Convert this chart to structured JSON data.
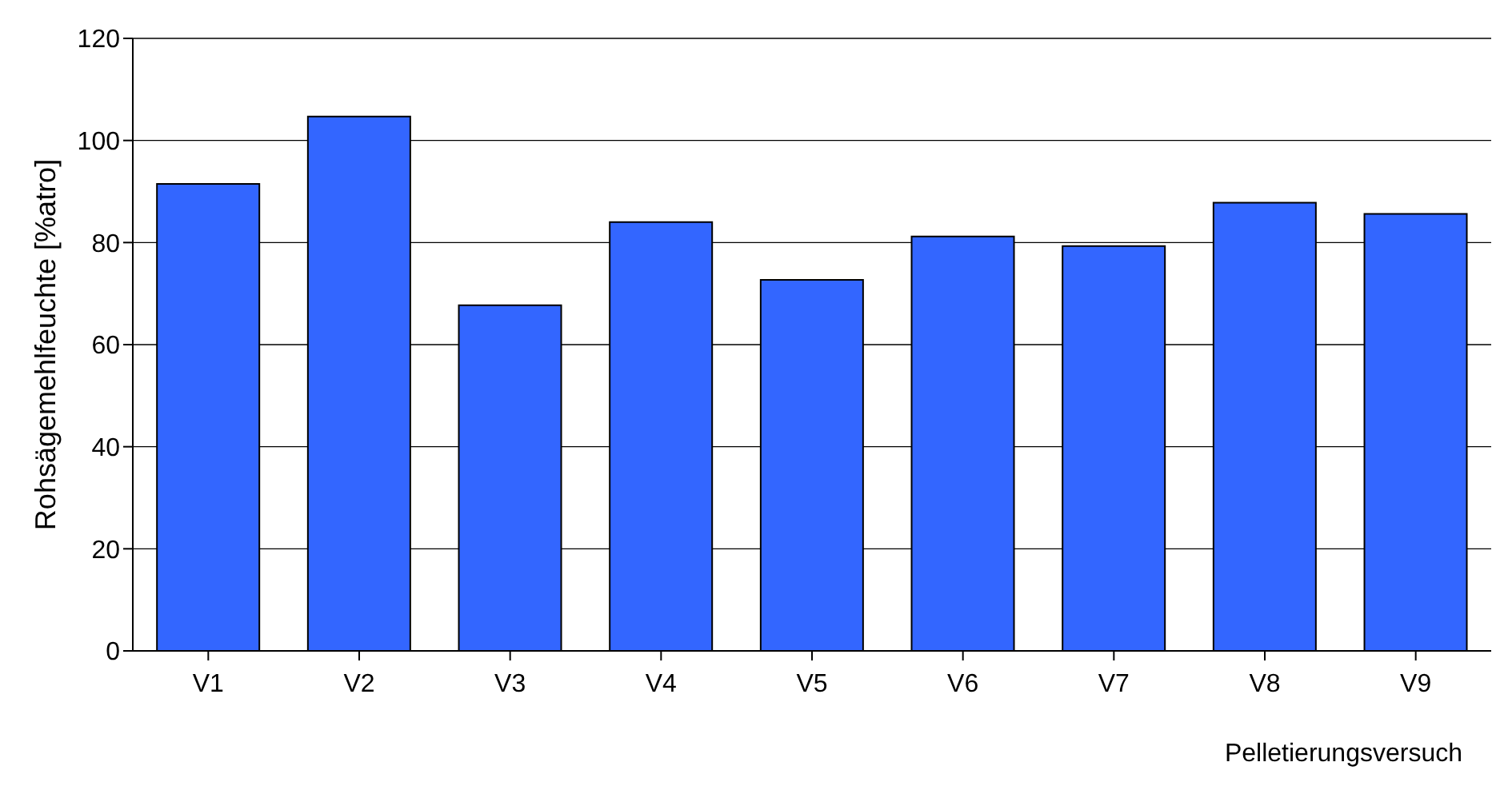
{
  "chart_data": {
    "type": "bar",
    "xlabel": "Pelletierungsversuch",
    "ylabel": "Rohsägemehlfeuchte [%atro]",
    "categories": [
      "V1",
      "V2",
      "V3",
      "V4",
      "V5",
      "V6",
      "V7",
      "V8",
      "V9"
    ],
    "values": [
      91.5,
      104.7,
      67.7,
      84,
      72.7,
      81.2,
      79.3,
      87.8,
      85.6
    ],
    "color": "#3366ff",
    "ylim": [
      0,
      120
    ],
    "yticks": [
      0,
      20,
      40,
      60,
      80,
      100,
      120
    ],
    "grid": "y"
  }
}
